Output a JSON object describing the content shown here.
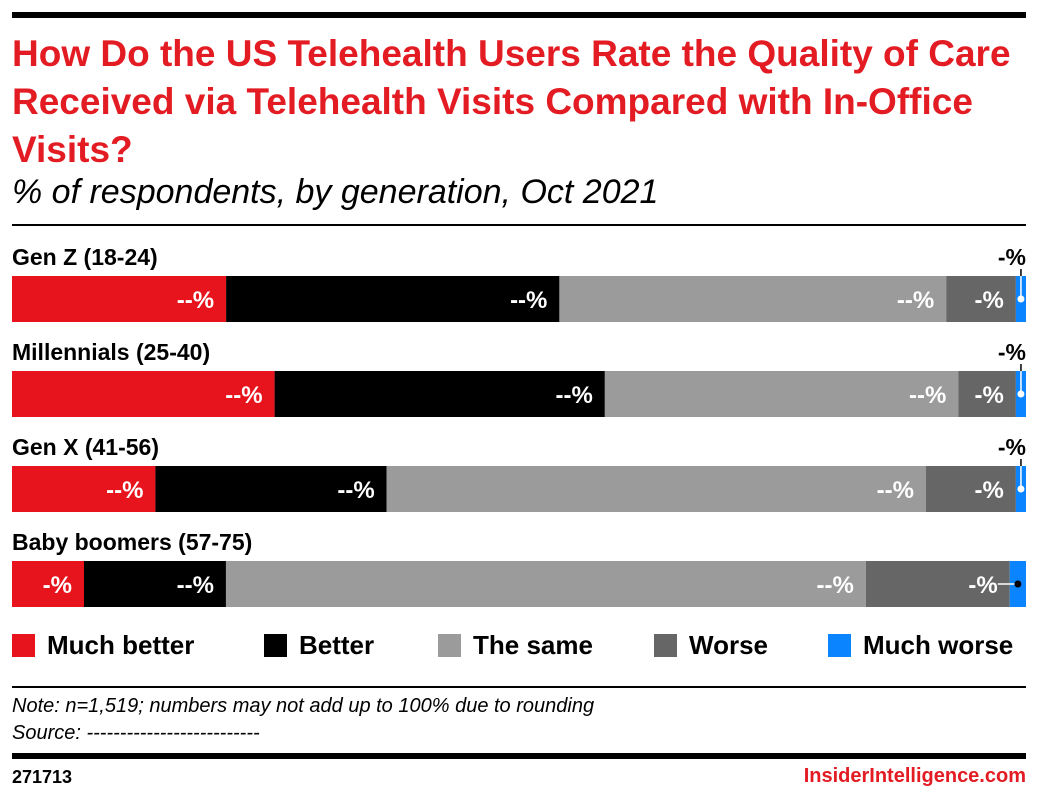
{
  "header": {
    "title": "How Do the US Telehealth Users Rate the Quality of Care Received via Telehealth Visits Compared with In-Office Visits?",
    "subtitle": "% of respondents, by generation, Oct 2021"
  },
  "chart_data": {
    "type": "bar",
    "orientation": "horizontal",
    "stacked": true,
    "normalized": true,
    "title": "How Do the US Telehealth Users Rate the Quality of Care Received via Telehealth Visits Compared with In-Office Visits?",
    "subtitle": "% of respondents, by generation, Oct 2021",
    "categories": [
      "Gen Z (18-24)",
      "Millennials (25-40)",
      "Gen X (41-56)",
      "Baby boomers (57-75)"
    ],
    "series": [
      {
        "name": "Much better",
        "color": "#e8141d",
        "values": [
          21.2,
          26.0,
          14.2,
          7.1
        ],
        "labels": [
          "--%",
          "--%",
          "--%",
          "-%"
        ]
      },
      {
        "name": "Better",
        "color": "#000000",
        "values": [
          33.0,
          32.7,
          22.9,
          14.0
        ],
        "labels": [
          "--%",
          "--%",
          "--%",
          "--%"
        ]
      },
      {
        "name": "The same",
        "color": "#9b9b9b",
        "values": [
          38.3,
          35.0,
          53.4,
          63.1
        ],
        "labels": [
          "--%",
          "--%",
          "--%",
          "--%"
        ]
      },
      {
        "name": "Worse",
        "color": "#666666",
        "values": [
          6.9,
          5.7,
          8.9,
          14.2
        ],
        "labels": [
          "-%",
          "-%",
          "-%",
          "-%"
        ]
      },
      {
        "name": "Much worse",
        "color": "#0a84ff",
        "values": [
          1.0,
          1.0,
          1.0,
          1.6
        ],
        "labels": [
          "-%",
          "-%",
          "-%",
          "-%"
        ]
      }
    ],
    "grid": false,
    "legend": "bottom"
  },
  "footer": {
    "note": "Note: n=1,519; numbers may not add up to 100% due to rounding",
    "source": "Source: --------------------------",
    "chart_id": "271713",
    "brand": "InsiderIntelligence.com"
  }
}
